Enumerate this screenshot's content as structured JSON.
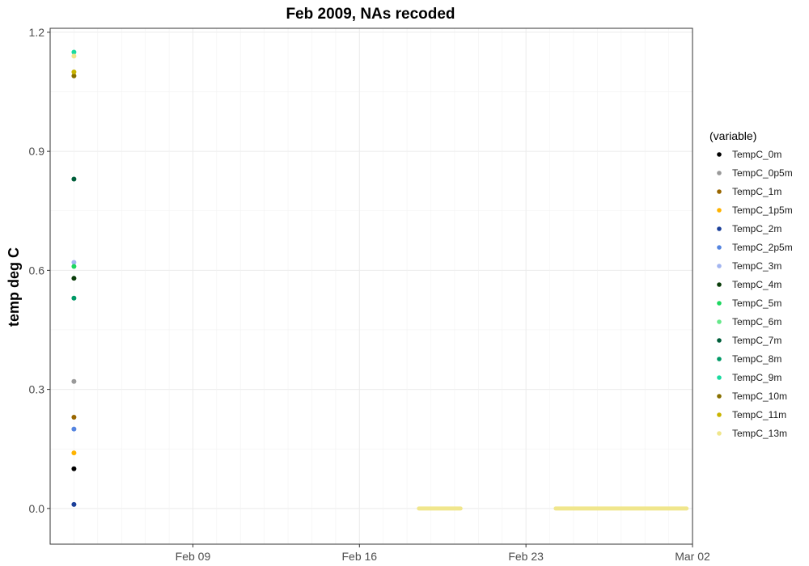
{
  "chart_data": {
    "type": "scatter",
    "title": "Feb 2009, NAs recoded",
    "xlabel": "",
    "ylabel": "temp deg C",
    "x_axis": {
      "type": "date",
      "range": [
        "2009-02-03",
        "2009-03-02"
      ],
      "ticks": [
        {
          "date": "2009-02-09",
          "label": "Feb 09"
        },
        {
          "date": "2009-02-16",
          "label": "Feb 16"
        },
        {
          "date": "2009-02-23",
          "label": "Feb 23"
        },
        {
          "date": "2009-03-02",
          "label": "Mar 02"
        }
      ]
    },
    "y_axis": {
      "range": [
        -0.09,
        1.21
      ],
      "ticks": [
        0.0,
        0.3,
        0.6,
        0.9,
        1.2
      ],
      "tick_labels": [
        "0.0",
        "0.3",
        "0.6",
        "0.9",
        "1.2"
      ]
    },
    "grid": true,
    "legend": {
      "title": "(variable)",
      "position": "right"
    },
    "series": [
      {
        "name": "TempC_0m",
        "color": "#000000",
        "points": [
          [
            "2009-02-04",
            0.1
          ]
        ]
      },
      {
        "name": "TempC_0p5m",
        "color": "#999999",
        "points": [
          [
            "2009-02-04",
            0.32
          ]
        ]
      },
      {
        "name": "TempC_1m",
        "color": "#996600",
        "points": [
          [
            "2009-02-04",
            0.23
          ]
        ]
      },
      {
        "name": "TempC_1p5m",
        "color": "#FFB300",
        "points": [
          [
            "2009-02-04",
            0.14
          ]
        ]
      },
      {
        "name": "TempC_2m",
        "color": "#1B3F99",
        "points": [
          [
            "2009-02-04",
            0.01
          ]
        ]
      },
      {
        "name": "TempC_2p5m",
        "color": "#5585E0",
        "points": [
          [
            "2009-02-04",
            0.2
          ]
        ]
      },
      {
        "name": "TempC_3m",
        "color": "#A3B5F0",
        "points": [
          [
            "2009-02-04",
            0.62
          ]
        ]
      },
      {
        "name": "TempC_4m",
        "color": "#0B3D0B",
        "points": [
          [
            "2009-02-04",
            0.58
          ]
        ]
      },
      {
        "name": "TempC_5m",
        "color": "#1ED760",
        "points": [
          [
            "2009-02-04",
            0.61
          ]
        ]
      },
      {
        "name": "TempC_6m",
        "color": "#66E88A",
        "points": []
      },
      {
        "name": "TempC_7m",
        "color": "#005E3A",
        "points": [
          [
            "2009-02-04",
            0.83
          ]
        ]
      },
      {
        "name": "TempC_8m",
        "color": "#009966",
        "points": [
          [
            "2009-02-04",
            0.53
          ]
        ]
      },
      {
        "name": "TempC_9m",
        "color": "#1ADBA0",
        "points": [
          [
            "2009-02-04",
            1.15
          ]
        ]
      },
      {
        "name": "TempC_10m",
        "color": "#887000",
        "points": [
          [
            "2009-02-04",
            1.09
          ]
        ]
      },
      {
        "name": "TempC_11m",
        "color": "#C9B400",
        "points": [
          [
            "2009-02-04",
            1.1
          ]
        ]
      },
      {
        "name": "TempC_13m",
        "color": "#F0E68C",
        "points": [
          [
            "2009-02-04",
            1.14
          ]
        ],
        "segments": [
          {
            "from": "2009-02-18T12:00",
            "to": "2009-02-20T06:00",
            "value": 0.0
          },
          {
            "from": "2009-02-24T06:00",
            "to": "2009-03-01T18:00",
            "value": 0.0
          }
        ]
      }
    ]
  }
}
